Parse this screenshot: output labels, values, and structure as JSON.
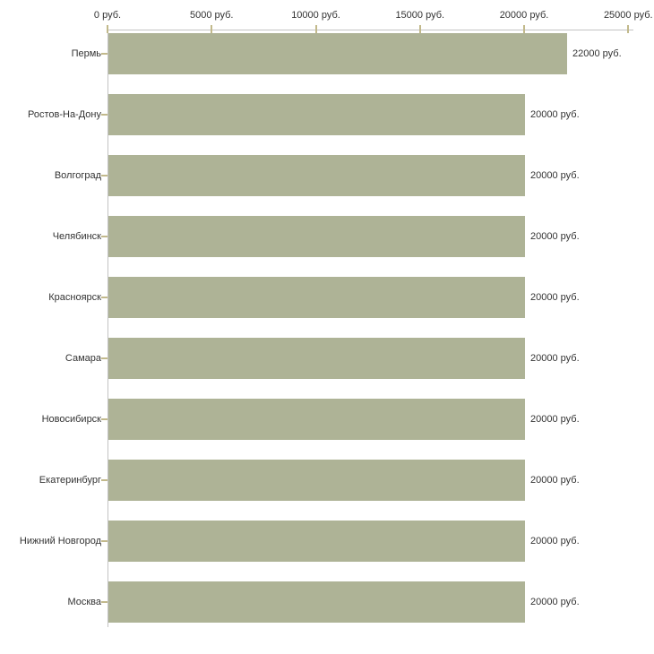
{
  "chart_data": {
    "type": "bar",
    "orientation": "horizontal",
    "title": "",
    "xlabel": "",
    "ylabel": "",
    "categories": [
      "Пермь",
      "Ростов-На-Дону",
      "Волгоград",
      "Челябинск",
      "Красноярск",
      "Самара",
      "Новосибирск",
      "Екатеринбург",
      "Нижний Новгород",
      "Москва"
    ],
    "values": [
      22000,
      20000,
      20000,
      20000,
      20000,
      20000,
      20000,
      20000,
      20000,
      20000
    ],
    "value_labels": [
      "22000 руб.",
      "20000 руб.",
      "20000 руб.",
      "20000 руб.",
      "20000 руб.",
      "20000 руб.",
      "20000 руб.",
      "20000 руб.",
      "20000 руб.",
      "20000 руб."
    ],
    "x_axis": {
      "position": "top",
      "xlim": [
        0,
        25000
      ],
      "ticks": [
        0,
        5000,
        10000,
        15000,
        20000,
        25000
      ],
      "tick_labels": [
        "0 руб.",
        "5000 руб.",
        "10000 руб.",
        "15000 руб.",
        "20000 руб.",
        "25000 руб."
      ]
    },
    "grid": false,
    "legend": false,
    "colors": {
      "bar": "#aeb396",
      "axis_line": "#c3c3c3",
      "tick_mark": "#c2b98b",
      "text": "#333333",
      "background": "#ffffff"
    }
  }
}
